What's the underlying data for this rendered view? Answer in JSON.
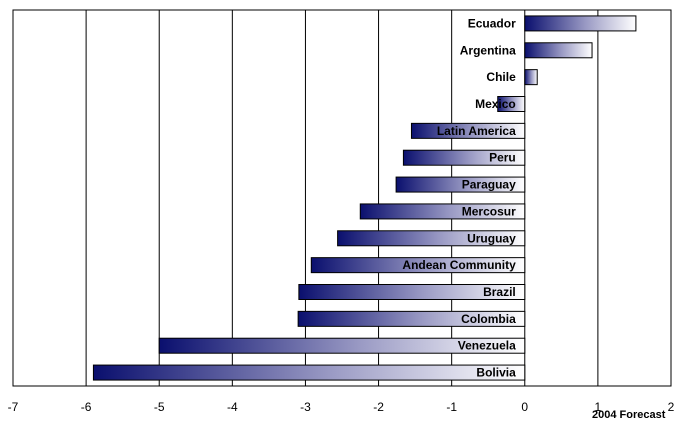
{
  "chart_data": {
    "type": "bar",
    "orientation": "horizontal",
    "categories": [
      "Ecuador",
      "Argentina",
      "Chile",
      "Mexico",
      "Latin America",
      "Peru",
      "Paraguay",
      "Mercosur",
      "Uruguay",
      "Andean Community",
      "Brazil",
      "Colombia",
      "Venezuela",
      "Bolivia"
    ],
    "values": [
      1.52,
      0.92,
      0.17,
      -0.37,
      -1.55,
      -1.66,
      -1.76,
      -2.25,
      -2.56,
      -2.92,
      -3.09,
      -3.1,
      -5.0,
      -5.9
    ],
    "xlim": [
      -7,
      2
    ],
    "xticks": [
      "-7",
      "-6",
      "-5",
      "-4",
      "-3",
      "-2",
      "-1",
      "0",
      "1",
      "2"
    ],
    "grid": "vertical",
    "annotation": "2004 Forecast",
    "colors": {
      "bar_dark": "#0a0f6e",
      "bar_light": "#ffffff",
      "grid": "#000000"
    }
  }
}
